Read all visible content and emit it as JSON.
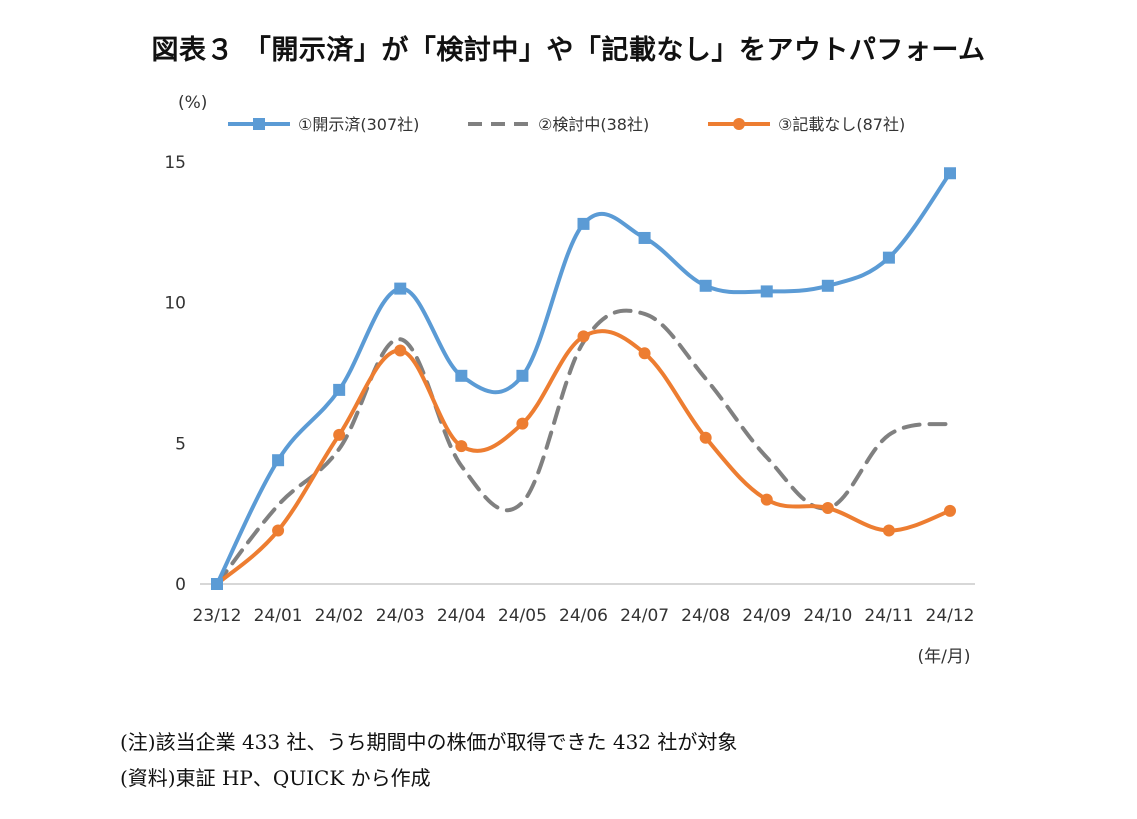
{
  "chart_data": {
    "type": "line",
    "title": "図表３ 「開示済」が「検討中」や「記載なし」をアウトパフォーム",
    "ylabel": "(%)",
    "xlabel": "(年/月)",
    "ylim": [
      0,
      15
    ],
    "yticks": [
      "0",
      "5",
      "10",
      "15"
    ],
    "categories": [
      "23/12",
      "24/01",
      "24/02",
      "24/03",
      "24/04",
      "24/05",
      "24/06",
      "24/07",
      "24/08",
      "24/09",
      "24/10",
      "24/11",
      "24/12"
    ],
    "legend_position": "top",
    "grid": false,
    "series": [
      {
        "name": "①開示済(307社)",
        "color": "#5b9bd5",
        "style": "solid",
        "marker": "square",
        "values": [
          0,
          4.4,
          6.9,
          10.5,
          7.4,
          7.4,
          12.8,
          12.3,
          10.6,
          10.4,
          10.6,
          11.6,
          14.6
        ]
      },
      {
        "name": "②検討中(38社)",
        "color": "#808080",
        "style": "dashed",
        "marker": "none",
        "values": [
          0,
          2.8,
          4.8,
          8.7,
          4.2,
          2.9,
          8.6,
          9.6,
          7.3,
          4.5,
          2.7,
          5.3,
          5.7
        ]
      },
      {
        "name": "③記載なし(87社)",
        "color": "#ed7d31",
        "style": "solid",
        "marker": "circle",
        "values": [
          0,
          1.9,
          5.3,
          8.3,
          4.9,
          5.7,
          8.8,
          8.2,
          5.2,
          3.0,
          2.7,
          1.9,
          2.6
        ]
      }
    ]
  },
  "notes": {
    "note1": "(注)該当企業 433 社、うち期間中の株価が取得できた 432 社が対象",
    "note2": "(資料)東証 HP、QUICK から作成"
  }
}
